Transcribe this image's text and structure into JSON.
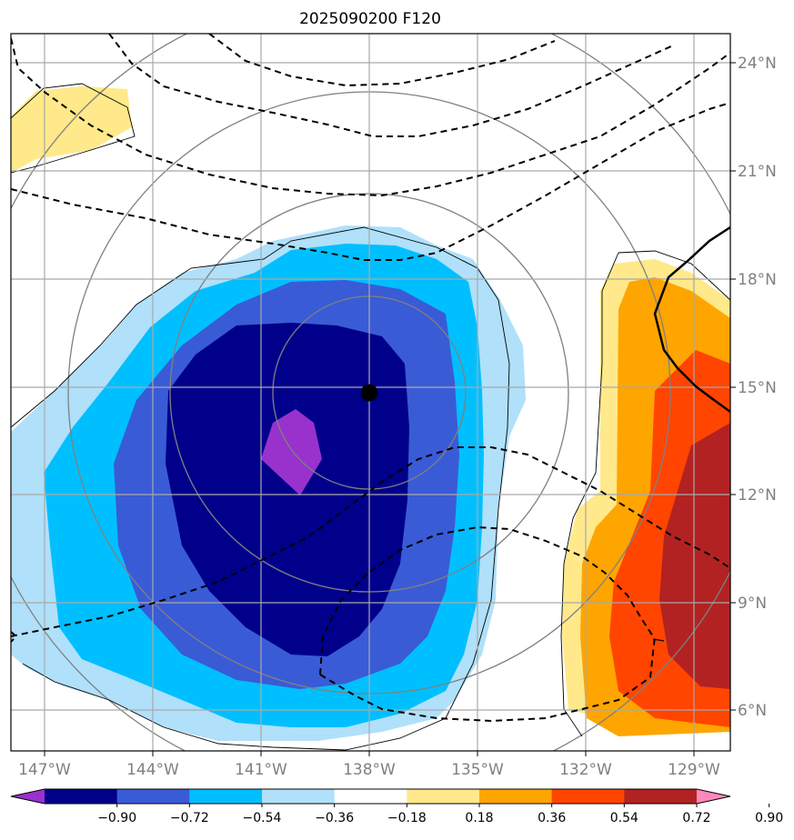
{
  "title": "2025090200 F120",
  "map": {
    "lon_labels": [
      "147°W",
      "144°W",
      "141°W",
      "138°W",
      "135°W",
      "132°W",
      "129°W"
    ],
    "lat_labels": [
      "24°N",
      "21°N",
      "18°N",
      "15°N",
      "12°N",
      "9°N",
      "6°N"
    ],
    "center_marker": "storm-center",
    "fill_colors": {
      "purple": "#9932CC",
      "navy": "#00008B",
      "royal": "#3A5BD6",
      "sky": "#00BFFF",
      "pale_blue": "#B0E0FA",
      "pale_yellow": "#FFE98A",
      "orange": "#FFA500",
      "red_orange": "#FF4500",
      "dark_red": "#B22222",
      "pink": "#FF88BB"
    }
  },
  "colorbar": {
    "ticks": [
      "−0.90",
      "−0.72",
      "−0.54",
      "−0.36",
      "−0.18",
      "0.18",
      "0.36",
      "0.54",
      "0.72",
      "0.90"
    ],
    "colors": [
      "#9932CC",
      "#00008B",
      "#3A5BD6",
      "#00BFFF",
      "#B0E0FA",
      "#FFFFFF",
      "#FFE98A",
      "#FFA500",
      "#FF4500",
      "#B22222",
      "#FF88BB"
    ]
  }
}
